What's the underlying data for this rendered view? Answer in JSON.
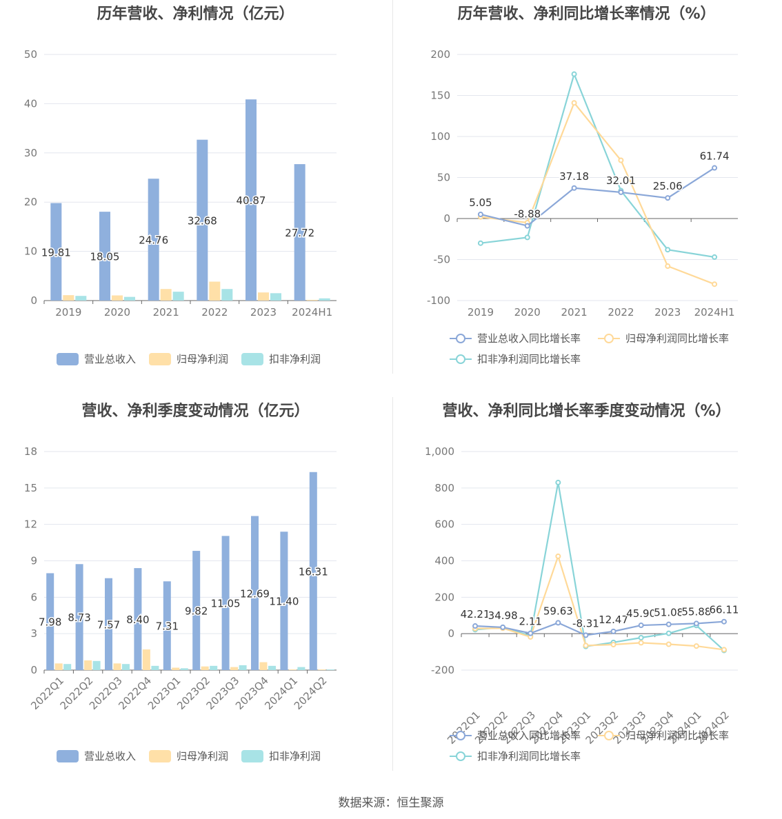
{
  "source_text": "数据来源：恒生聚源",
  "colors": {
    "revenue": "#8fb0dd",
    "netprofit": "#ffe0a8",
    "deducted": "#a8e3e6",
    "revenue_line": "#8aa7d8",
    "netprofit_line": "#ffd998",
    "deducted_line": "#88d4d8"
  },
  "chart_data": [
    {
      "type": "bar",
      "title": "历年营收、净利情况（亿元）",
      "categories": [
        "2019",
        "2020",
        "2021",
        "2022",
        "2023",
        "2024H1"
      ],
      "ylim": [
        0,
        50
      ],
      "yticks": [
        0,
        10,
        20,
        30,
        40,
        50
      ],
      "series": [
        {
          "name": "营业总收入",
          "values": [
            19.81,
            18.05,
            24.76,
            32.68,
            40.87,
            27.72
          ],
          "labels": [
            "19.81",
            "18.05",
            "24.76",
            "32.68",
            "40.87",
            "27.72"
          ]
        },
        {
          "name": "归母净利润",
          "values": [
            1.1,
            1.05,
            2.35,
            3.85,
            1.65,
            0.15
          ]
        },
        {
          "name": "扣非净利润",
          "values": [
            0.95,
            0.75,
            1.8,
            2.35,
            1.5,
            0.45
          ]
        }
      ],
      "legend": "bottom",
      "grid": true
    },
    {
      "type": "line",
      "title": "历年营收、净利同比增长率情况（%）",
      "categories": [
        "2019",
        "2020",
        "2021",
        "2022",
        "2023",
        "2024H1"
      ],
      "ylim": [
        -100,
        200
      ],
      "yticks": [
        -100,
        -50,
        0,
        50,
        100,
        150,
        200
      ],
      "series": [
        {
          "name": "营业总收入同比增长率",
          "values": [
            5.05,
            -8.88,
            37.18,
            32.01,
            25.06,
            61.74
          ],
          "labels": [
            "5.05",
            "-8.88",
            "37.18",
            "32.01",
            "25.06",
            "61.74"
          ]
        },
        {
          "name": "归母净利润同比增长率",
          "values": [
            2,
            -5,
            141,
            71,
            -58,
            -80
          ]
        },
        {
          "name": "扣非净利润同比增长率",
          "values": [
            -30,
            -23,
            176,
            34,
            -38,
            -47
          ]
        }
      ],
      "legend": "bottom",
      "grid": true
    },
    {
      "type": "bar",
      "title": "营收、净利季度变动情况（亿元）",
      "categories": [
        "2022Q1",
        "2022Q2",
        "2022Q3",
        "2022Q4",
        "2023Q1",
        "2023Q2",
        "2023Q3",
        "2023Q4",
        "2024Q1",
        "2024Q2"
      ],
      "ylim": [
        0,
        18
      ],
      "yticks": [
        0,
        3,
        6,
        9,
        12,
        15,
        18
      ],
      "series": [
        {
          "name": "营业总收入",
          "values": [
            7.98,
            8.73,
            7.57,
            8.4,
            7.31,
            9.82,
            11.05,
            12.69,
            11.4,
            16.31
          ],
          "labels": [
            "7.98",
            "8.73",
            "7.57",
            "8.40",
            "7.31",
            "9.82",
            "11.05",
            "12.69",
            "11.40",
            "16.31"
          ]
        },
        {
          "name": "归母净利润",
          "values": [
            0.55,
            0.8,
            0.55,
            1.7,
            0.2,
            0.3,
            0.25,
            0.65,
            0.05,
            0.05
          ]
        },
        {
          "name": "扣非净利润",
          "values": [
            0.5,
            0.75,
            0.5,
            0.35,
            0.15,
            0.35,
            0.4,
            0.35,
            0.25,
            0.05
          ]
        }
      ],
      "legend": "bottom",
      "grid": true
    },
    {
      "type": "line",
      "title": "营收、净利同比增长率季度变动情况（%）",
      "categories": [
        "2022Q1",
        "2022Q2",
        "2022Q3",
        "2022Q4",
        "2023Q1",
        "2023Q2",
        "2023Q3",
        "2023Q4",
        "2024Q1",
        "2024Q2"
      ],
      "ylim": [
        -200,
        1000
      ],
      "yticks": [
        -200,
        0,
        200,
        400,
        600,
        800,
        1000
      ],
      "ytick_labels": [
        "-200",
        "0",
        "200",
        "400",
        "600",
        "800",
        "1,000"
      ],
      "series": [
        {
          "name": "营业总收入同比增长率",
          "values": [
            42.21,
            34.98,
            2.11,
            59.63,
            -8.31,
            12.47,
            45.9,
            51.08,
            55.88,
            66.11
          ],
          "labels": [
            "42.21",
            "34.98",
            "2.11",
            "59.63",
            "-8.31",
            "12.47",
            "45.90",
            "51.08",
            "55.88",
            "66.11"
          ]
        },
        {
          "name": "归母净利润同比增长率",
          "values": [
            28,
            30,
            -18,
            425,
            -65,
            -60,
            -50,
            -58,
            -68,
            -88
          ]
        },
        {
          "name": "扣非净利润同比增长率",
          "values": [
            22,
            35,
            -12,
            830,
            -70,
            -48,
            -22,
            2,
            45,
            -92
          ]
        }
      ],
      "legend": "bottom",
      "grid": true
    }
  ]
}
